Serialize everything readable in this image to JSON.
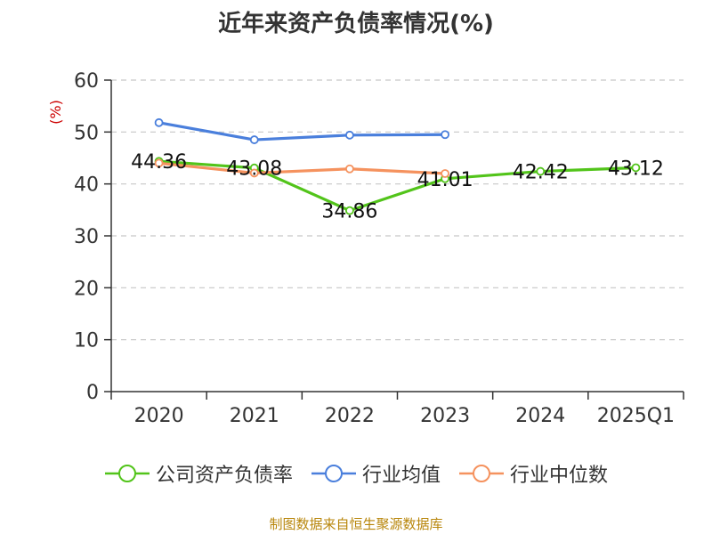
{
  "chart_data": {
    "type": "line",
    "title": "近年来资产负债率情况(%)",
    "ylabel": "(%)",
    "categories": [
      "2020",
      "2021",
      "2022",
      "2023",
      "2024",
      "2025Q1"
    ],
    "ylim": [
      0,
      60
    ],
    "yticks": [
      0,
      10,
      20,
      30,
      40,
      50,
      60
    ],
    "grid": true,
    "legend_position": "bottom",
    "series": [
      {
        "name": "公司资产负债率",
        "color": "#52c41a",
        "values": [
          44.36,
          43.08,
          34.86,
          41.01,
          42.42,
          43.12
        ],
        "labels": [
          "44.36",
          "43.08",
          "34.86",
          "41.01",
          "42.42",
          "43.12"
        ]
      },
      {
        "name": "行业均值",
        "color": "#4a7fdc",
        "values": [
          51.8,
          48.5,
          49.4,
          49.5,
          null,
          null
        ]
      },
      {
        "name": "行业中位数",
        "color": "#f5925e",
        "values": [
          44.0,
          42.1,
          42.9,
          42.0,
          null,
          null
        ]
      }
    ]
  },
  "footer": {
    "source": "制图数据来自恒生聚源数据库"
  }
}
